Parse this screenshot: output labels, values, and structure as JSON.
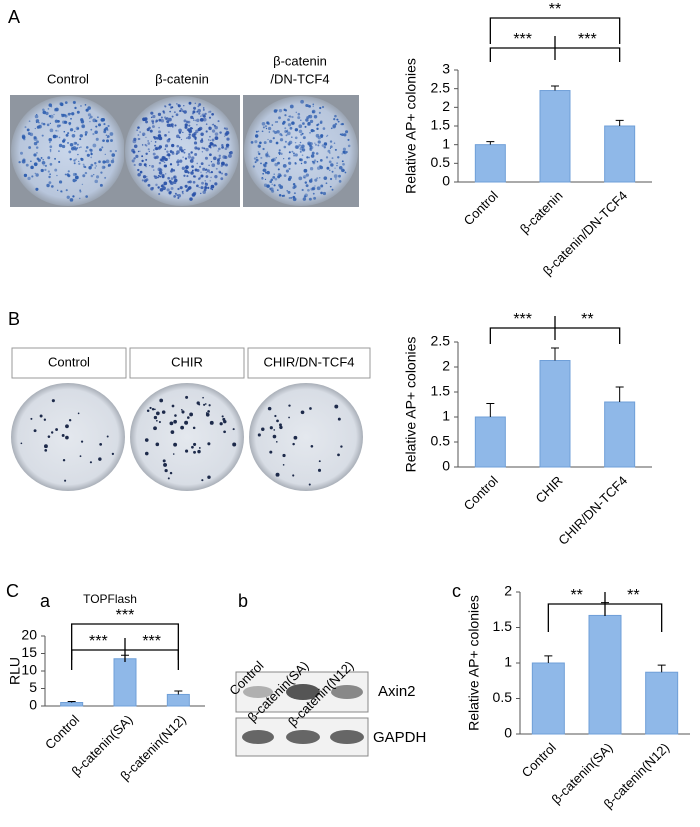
{
  "chart_data": [
    {
      "type": "bar",
      "panel_label": "A",
      "ylabel": "Relative AP+ colonies",
      "categories": [
        "Control",
        "β-catenin",
        "β-catenin/DN-TCF4"
      ],
      "values": [
        1.0,
        2.45,
        1.5
      ],
      "errors": [
        0.08,
        0.12,
        0.15
      ],
      "color": "#8fb8e8",
      "ylim": [
        0,
        3
      ],
      "yticks": [
        0,
        0.5,
        1,
        1.5,
        2,
        2.5,
        3
      ],
      "annotations": [
        "**",
        "***",
        "***"
      ]
    },
    {
      "type": "bar",
      "panel_label": "B",
      "ylabel": "Relative AP+ colonies",
      "categories": [
        "Control",
        "CHIR",
        "CHIR/DN-TCF4"
      ],
      "values": [
        1.0,
        2.13,
        1.3
      ],
      "errors": [
        0.27,
        0.25,
        0.3
      ],
      "color": "#8fb8e8",
      "ylim": [
        0,
        2.5
      ],
      "yticks": [
        0,
        0.5,
        1,
        1.5,
        2,
        2.5
      ],
      "annotations": [
        "***",
        "**"
      ]
    },
    {
      "type": "bar",
      "panel_label": "a",
      "title": "TOPFlash",
      "ylabel": "RLU",
      "categories": [
        "Control",
        "β-catenin(SA)",
        "β-catenin(N12)"
      ],
      "values": [
        1,
        13.5,
        3.3
      ],
      "errors": [
        0.3,
        1.0,
        1.0
      ],
      "color": "#8fb8e8",
      "ylim": [
        0,
        20
      ],
      "yticks": [
        0,
        5,
        10,
        15,
        20
      ],
      "annotations": [
        "***",
        "***",
        "***"
      ]
    },
    {
      "type": "bar",
      "panel_label": "c",
      "ylabel": "Relative AP+ colonies",
      "categories": [
        "Control",
        "β-catenin(SA)",
        "β-catenin(N12)"
      ],
      "values": [
        1.0,
        1.67,
        0.87
      ],
      "errors": [
        0.1,
        0.18,
        0.1
      ],
      "color": "#8fb8e8",
      "ylim": [
        0,
        2
      ],
      "yticks": [
        0,
        0.5,
        1,
        1.5,
        2
      ],
      "annotations": [
        "**",
        "**"
      ]
    }
  ],
  "plates_A": [
    [
      "Control"
    ],
    [
      "β-catenin"
    ],
    [
      "β-catenin",
      "/DN-TCF4"
    ]
  ],
  "plates_B": [
    "Control",
    "CHIR",
    "CHIR/DN-TCF4"
  ],
  "panel_C": "C",
  "western_blot": {
    "panel_label": "b",
    "lanes": [
      "Control",
      "β-catenin(SA)",
      "β-catenin(N12)"
    ],
    "bands": [
      "Axin2",
      "GAPDH"
    ]
  }
}
